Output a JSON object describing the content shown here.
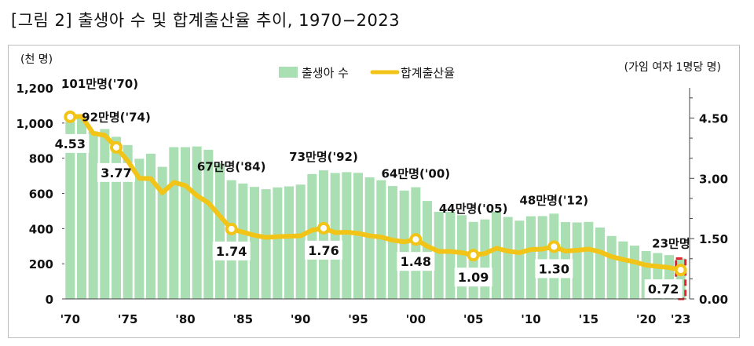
{
  "figure_title": "[그림 2] 출생아 수 및 합계출산율 추이, 1970−2023",
  "chart_data": {
    "type": "bar+line",
    "left_axis_label": "(천 명)",
    "right_axis_label": "(가임 여자 1명당 명)",
    "legend": {
      "bar": "출생아 수",
      "line": "합계출산율"
    },
    "left_ylim": [
      0,
      1200
    ],
    "left_ticks": [
      "0",
      "200",
      "400",
      "600",
      "800",
      "1,000",
      "1,200"
    ],
    "right_ylim": [
      0,
      5.25
    ],
    "right_ticks": [
      "0.00",
      "1.50",
      "3.00",
      "4.50"
    ],
    "x_tick_labels": [
      "'70",
      "'75",
      "'80",
      "'85",
      "'90",
      "'95",
      "'00",
      "'05",
      "'10",
      "'15",
      "'20",
      "'23"
    ],
    "years": [
      1970,
      1971,
      1972,
      1973,
      1974,
      1975,
      1976,
      1977,
      1978,
      1979,
      1980,
      1981,
      1982,
      1983,
      1984,
      1985,
      1986,
      1987,
      1988,
      1989,
      1990,
      1991,
      1992,
      1993,
      1994,
      1995,
      1996,
      1997,
      1998,
      1999,
      2000,
      2001,
      2002,
      2003,
      2004,
      2005,
      2006,
      2007,
      2008,
      2009,
      2010,
      2011,
      2012,
      2013,
      2014,
      2015,
      2016,
      2017,
      2018,
      2019,
      2020,
      2021,
      2022,
      2023
    ],
    "births_thousand": [
      1007,
      1025,
      953,
      966,
      922,
      875,
      797,
      826,
      751,
      863,
      863,
      867,
      848,
      770,
      675,
      656,
      637,
      624,
      634,
      640,
      650,
      710,
      731,
      716,
      721,
      717,
      691,
      675,
      642,
      616,
      635,
      557,
      495,
      495,
      476,
      438,
      452,
      497,
      466,
      445,
      470,
      471,
      485,
      437,
      435,
      438,
      406,
      358,
      327,
      303,
      272,
      261,
      249,
      230
    ],
    "tfr": [
      4.53,
      4.54,
      4.12,
      4.07,
      3.77,
      3.43,
      3.0,
      2.99,
      2.64,
      2.9,
      2.82,
      2.57,
      2.39,
      2.06,
      1.74,
      1.66,
      1.58,
      1.53,
      1.55,
      1.56,
      1.57,
      1.71,
      1.76,
      1.65,
      1.66,
      1.63,
      1.57,
      1.54,
      1.46,
      1.42,
      1.48,
      1.31,
      1.18,
      1.18,
      1.15,
      1.09,
      1.13,
      1.26,
      1.19,
      1.15,
      1.23,
      1.24,
      1.3,
      1.19,
      1.21,
      1.24,
      1.17,
      1.05,
      0.98,
      0.92,
      0.84,
      0.81,
      0.78,
      0.72
    ],
    "bar_annotations": [
      {
        "text": "101만명('70)",
        "year": 1970
      },
      {
        "text": "92만명('74)",
        "year": 1974
      },
      {
        "text": "67만명('84)",
        "year": 1984
      },
      {
        "text": "73만명('92)",
        "year": 1992
      },
      {
        "text": "64만명('00)",
        "year": 2000
      },
      {
        "text": "44만명('05)",
        "year": 2005
      },
      {
        "text": "48만명('12)",
        "year": 2012
      },
      {
        "text": "23만명",
        "year": 2023
      }
    ],
    "line_annotations": [
      {
        "text": "4.53",
        "year": 1970
      },
      {
        "text": "3.77",
        "year": 1974
      },
      {
        "text": "1.74",
        "year": 1984
      },
      {
        "text": "1.76",
        "year": 1992
      },
      {
        "text": "1.48",
        "year": 2000
      },
      {
        "text": "1.09",
        "year": 2005
      },
      {
        "text": "1.30",
        "year": 2012
      },
      {
        "text": "0.72",
        "year": 2023
      }
    ],
    "colors": {
      "bar": "#a9dfb3",
      "line": "#f2c418",
      "marker_fill": "#ffffff",
      "highlight": "#e8202a",
      "text": "#111111",
      "axis": "#444444"
    }
  }
}
